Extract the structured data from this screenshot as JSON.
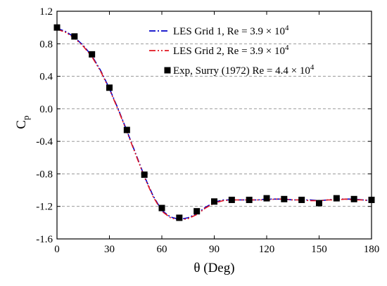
{
  "chart_data": {
    "type": "line",
    "xlabel": "θ (Deg)",
    "ylabel": {
      "main": "C",
      "sub": "p"
    },
    "xlim": [
      0,
      180
    ],
    "ylim": [
      -1.6,
      1.2
    ],
    "xticks": [
      0,
      30,
      60,
      90,
      120,
      150,
      180
    ],
    "yticks": [
      -1.6,
      -1.2,
      -0.8,
      -0.4,
      0.0,
      0.4,
      0.8,
      1.2
    ],
    "xtick_labels": [
      "0",
      "30",
      "60",
      "90",
      "120",
      "150",
      "180"
    ],
    "ytick_labels": [
      "-1.6",
      "-1.2",
      "-0.8",
      "-0.4",
      "0.0",
      "0.4",
      "0.8",
      "1.2"
    ],
    "grid": "horizontal-dashed",
    "legend_position": "top-right",
    "series": [
      {
        "name": "LES Grid 1, Re = 3.9 × 10",
        "name_sup": "4",
        "style": "dash-dot",
        "color": "#0000c8",
        "x": [
          0,
          5,
          10,
          15,
          20,
          25,
          30,
          35,
          40,
          45,
          50,
          55,
          60,
          65,
          70,
          75,
          80,
          85,
          90,
          95,
          100,
          105,
          110,
          115,
          120,
          125,
          130,
          135,
          140,
          145,
          150,
          155,
          160,
          165,
          170,
          175,
          180
        ],
        "y": [
          0.99,
          0.95,
          0.88,
          0.78,
          0.65,
          0.47,
          0.25,
          0.0,
          -0.27,
          -0.55,
          -0.83,
          -1.07,
          -1.25,
          -1.33,
          -1.36,
          -1.34,
          -1.29,
          -1.21,
          -1.15,
          -1.12,
          -1.12,
          -1.12,
          -1.12,
          -1.12,
          -1.11,
          -1.11,
          -1.11,
          -1.12,
          -1.12,
          -1.12,
          -1.13,
          -1.12,
          -1.11,
          -1.11,
          -1.11,
          -1.12,
          -1.13
        ]
      },
      {
        "name": "LES Grid 2, Re = 3.9 × 10",
        "name_sup": "4",
        "style": "dash-dot-dot",
        "color": "#e0141e",
        "x": [
          0,
          5,
          10,
          15,
          20,
          25,
          30,
          35,
          40,
          45,
          50,
          55,
          60,
          65,
          70,
          75,
          80,
          85,
          90,
          95,
          100,
          105,
          110,
          115,
          120,
          125,
          130,
          135,
          140,
          145,
          150,
          155,
          160,
          165,
          170,
          175,
          180
        ],
        "y": [
          0.98,
          0.94,
          0.87,
          0.77,
          0.64,
          0.46,
          0.24,
          -0.01,
          -0.28,
          -0.56,
          -0.84,
          -1.08,
          -1.26,
          -1.34,
          -1.37,
          -1.35,
          -1.3,
          -1.22,
          -1.16,
          -1.13,
          -1.12,
          -1.12,
          -1.12,
          -1.12,
          -1.12,
          -1.11,
          -1.11,
          -1.12,
          -1.12,
          -1.13,
          -1.13,
          -1.12,
          -1.12,
          -1.11,
          -1.12,
          -1.12,
          -1.13
        ]
      },
      {
        "name": "Exp, Surry (1972) Re = 4.4 × 10",
        "name_sup": "4",
        "style": "marker-square",
        "color": "#000000",
        "x": [
          0,
          10,
          20,
          30,
          40,
          50,
          60,
          70,
          80,
          90,
          100,
          110,
          120,
          130,
          140,
          150,
          160,
          170,
          180
        ],
        "y": [
          1.0,
          0.89,
          0.67,
          0.26,
          -0.26,
          -0.81,
          -1.22,
          -1.34,
          -1.26,
          -1.14,
          -1.12,
          -1.12,
          -1.1,
          -1.11,
          -1.12,
          -1.16,
          -1.1,
          -1.11,
          -1.12
        ]
      }
    ]
  }
}
